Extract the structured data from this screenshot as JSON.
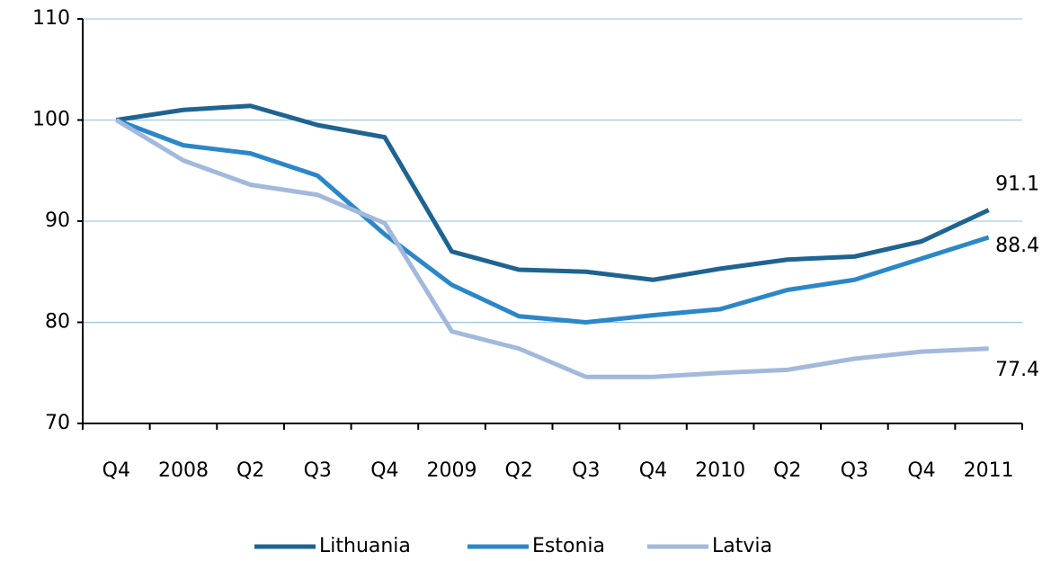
{
  "chart_data": {
    "type": "line",
    "categories": [
      "Q4",
      "2008",
      "Q2",
      "Q3",
      "Q4",
      "2009",
      "Q2",
      "Q3",
      "Q4",
      "2010",
      "Q2",
      "Q3",
      "Q4",
      "2011"
    ],
    "series": [
      {
        "name": "Lithuania",
        "color": "#1f6391",
        "values": [
          100,
          101.0,
          101.4,
          99.5,
          98.3,
          87.0,
          85.2,
          85.0,
          84.2,
          85.3,
          86.2,
          86.5,
          88.0,
          91.1
        ]
      },
      {
        "name": "Estonia",
        "color": "#2b87c8",
        "values": [
          100,
          97.5,
          96.7,
          94.5,
          88.7,
          83.7,
          80.6,
          80.0,
          80.7,
          81.3,
          83.2,
          84.2,
          86.3,
          88.4
        ]
      },
      {
        "name": "Latvia",
        "color": "#a3b9db",
        "values": [
          100,
          96.0,
          93.6,
          92.6,
          89.8,
          79.1,
          77.4,
          74.6,
          74.6,
          75.0,
          75.3,
          76.4,
          77.1,
          77.4
        ]
      }
    ],
    "ylim": [
      70,
      110
    ],
    "yticks": [
      70,
      80,
      90,
      100,
      110
    ],
    "grid": true,
    "legend": "bottom"
  }
}
